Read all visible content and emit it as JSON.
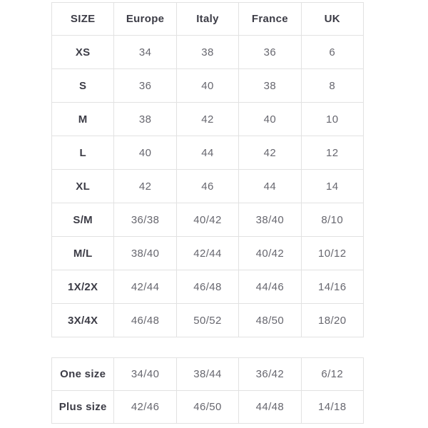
{
  "colors": {
    "background": "#ffffff",
    "border": "#e2e2e2",
    "header_text": "#3c3c46",
    "label_text": "#3c3c46",
    "value_text": "#67676f"
  },
  "chart_data": [
    {
      "type": "table",
      "columns": [
        "SIZE",
        "Europe",
        "Italy",
        "France",
        "UK"
      ],
      "rows": [
        [
          "XS",
          "34",
          "38",
          "36",
          "6"
        ],
        [
          "S",
          "36",
          "40",
          "38",
          "8"
        ],
        [
          "M",
          "38",
          "42",
          "40",
          "10"
        ],
        [
          "L",
          "40",
          "44",
          "42",
          "12"
        ],
        [
          "XL",
          "42",
          "46",
          "44",
          "14"
        ],
        [
          "S/M",
          "36/38",
          "40/42",
          "38/40",
          "8/10"
        ],
        [
          "M/L",
          "38/40",
          "42/44",
          "40/42",
          "10/12"
        ],
        [
          "1X/2X",
          "42/44",
          "46/48",
          "44/46",
          "14/16"
        ],
        [
          "3X/4X",
          "46/48",
          "50/52",
          "48/50",
          "18/20"
        ]
      ],
      "layout": {
        "grid": true,
        "header_row": true,
        "position": "top"
      }
    },
    {
      "type": "table",
      "columns": [],
      "rows": [
        [
          "One size",
          "34/40",
          "38/44",
          "36/42",
          "6/12"
        ],
        [
          "Plus size",
          "42/46",
          "46/50",
          "44/48",
          "14/18"
        ]
      ],
      "layout": {
        "grid": true,
        "header_row": false,
        "position": "bottom"
      }
    }
  ]
}
